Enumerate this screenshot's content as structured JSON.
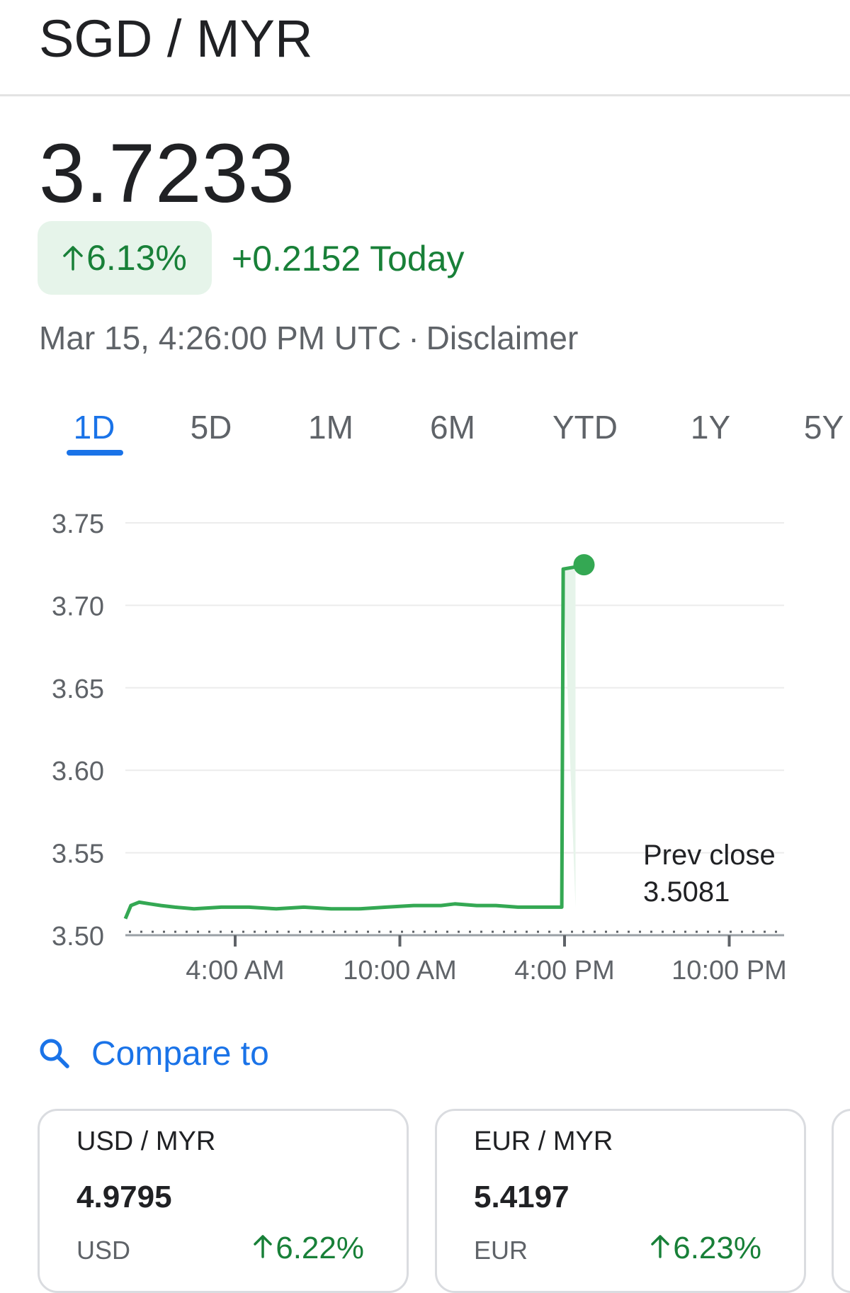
{
  "header": {
    "title": "SGD / MYR"
  },
  "quote": {
    "price": "3.7233",
    "change_percent": "6.13%",
    "change_today": "+0.2152 Today",
    "timestamp": "Mar 15, 4:26:00 PM UTC",
    "separator": "·",
    "disclaimer": "Disclaimer"
  },
  "range_tabs": [
    {
      "label": "1D",
      "active": true
    },
    {
      "label": "5D"
    },
    {
      "label": "1M"
    },
    {
      "label": "6M"
    },
    {
      "label": "YTD"
    },
    {
      "label": "1Y"
    },
    {
      "label": "5Y"
    }
  ],
  "colors": {
    "accent": "#1a73e8",
    "positive": "#188038",
    "line": "#34a853",
    "badge_bg": "#e6f4ea"
  },
  "chart_data": {
    "type": "line",
    "x_tick_labels": [
      "4:00 AM",
      "10:00 AM",
      "4:00 PM",
      "10:00 PM"
    ],
    "x_ticks_hours": [
      4,
      10,
      16,
      22
    ],
    "x_range_hours": [
      0,
      24
    ],
    "y_tick_labels": [
      "3.75",
      "3.70",
      "3.65",
      "3.60",
      "3.55",
      "3.50"
    ],
    "ylim": [
      3.5,
      3.75
    ],
    "grid": true,
    "prev_close": {
      "label": "Prev close",
      "value": "3.5081"
    },
    "series": [
      {
        "points": [
          [
            0.0,
            3.51
          ],
          [
            0.2,
            3.518
          ],
          [
            0.5,
            3.52
          ],
          [
            0.9,
            3.519
          ],
          [
            1.3,
            3.518
          ],
          [
            1.8,
            3.517
          ],
          [
            2.5,
            3.516
          ],
          [
            3.5,
            3.517
          ],
          [
            4.5,
            3.517
          ],
          [
            5.5,
            3.516
          ],
          [
            6.5,
            3.517
          ],
          [
            7.5,
            3.516
          ],
          [
            8.5,
            3.516
          ],
          [
            9.5,
            3.517
          ],
          [
            10.5,
            3.518
          ],
          [
            11.5,
            3.518
          ],
          [
            12.0,
            3.519
          ],
          [
            12.8,
            3.518
          ],
          [
            13.5,
            3.518
          ],
          [
            14.3,
            3.517
          ],
          [
            15.0,
            3.517
          ],
          [
            15.5,
            3.517
          ],
          [
            15.9,
            3.517
          ],
          [
            15.95,
            3.722
          ],
          [
            16.4,
            3.7233
          ]
        ]
      }
    ],
    "last_value": "3.7233"
  },
  "compare": {
    "label": "Compare to",
    "cards": [
      {
        "pair": "USD / MYR",
        "price": "4.9795",
        "base": "USD",
        "change": "6.22%"
      },
      {
        "pair": "EUR / MYR",
        "price": "5.4197",
        "base": "EUR",
        "change": "6.23%"
      }
    ]
  }
}
